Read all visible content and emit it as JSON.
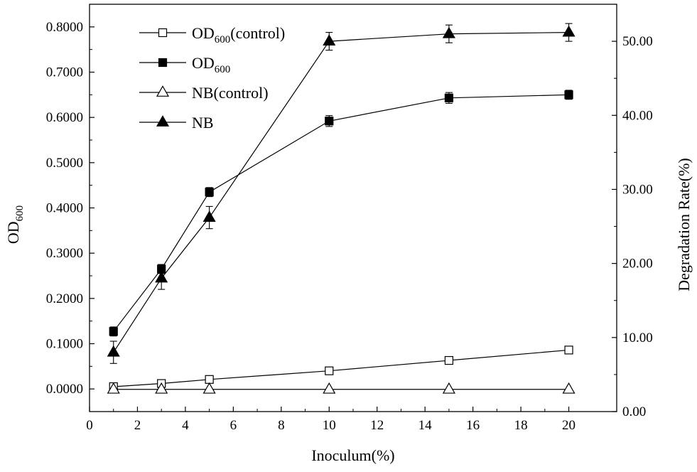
{
  "chart_data": {
    "type": "line",
    "xlabel": "Inoculum(%)",
    "ylabel_left": {
      "main": "OD",
      "sub": "600"
    },
    "ylabel_right": "Degradation Rate(%)",
    "xlim": [
      0,
      22
    ],
    "ylim_left": [
      -0.05,
      0.85
    ],
    "ylim_right": [
      0,
      55
    ],
    "x_ticks": [
      "0",
      "2",
      "4",
      "6",
      "8",
      "10",
      "12",
      "14",
      "16",
      "18",
      "20"
    ],
    "y_left_ticks": [
      "0.0000",
      "0.1000",
      "0.2000",
      "0.3000",
      "0.4000",
      "0.5000",
      "0.6000",
      "0.7000",
      "0.8000"
    ],
    "y_right_ticks": [
      "0.00",
      "10.00",
      "20.00",
      "30.00",
      "40.00",
      "50.00"
    ],
    "x": [
      1,
      3,
      5,
      10,
      15,
      20
    ],
    "series": [
      {
        "name": "OD",
        "name_sub": "600",
        "name_suffix": "(control)",
        "axis": "left",
        "marker": "square-open",
        "values": [
          0.005,
          0.012,
          0.021,
          0.04,
          0.063,
          0.086
        ]
      },
      {
        "name": "OD",
        "name_sub": "600",
        "name_suffix": "",
        "axis": "left",
        "marker": "square-filled",
        "values": [
          0.127,
          0.265,
          0.435,
          0.592,
          0.643,
          0.65
        ],
        "error": [
          0.01,
          0.01,
          0.01,
          0.012,
          0.012,
          0.01
        ]
      },
      {
        "name": "NB(control)",
        "name_sub": "",
        "name_suffix": "",
        "axis": "right",
        "marker": "triangle-open",
        "values": [
          3.0,
          3.0,
          3.0,
          3.0,
          3.0,
          3.0
        ]
      },
      {
        "name": "NB",
        "name_sub": "",
        "name_suffix": "",
        "axis": "right",
        "marker": "triangle-filled",
        "values": [
          8.0,
          18.0,
          26.2,
          50.0,
          51.0,
          51.2
        ],
        "error": [
          1.5,
          1.5,
          1.5,
          1.2,
          1.2,
          1.2
        ]
      }
    ],
    "legend_position": "top-left",
    "grid": false
  }
}
